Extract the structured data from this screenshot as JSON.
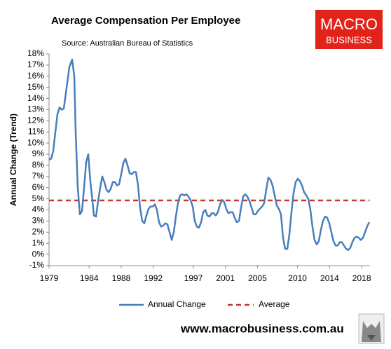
{
  "chart_data": {
    "type": "line",
    "title": "Average Compensation Per Employee",
    "subtitle": "Source: Australian Bureau of Statistics",
    "y_label": "Annual Change (Trend)",
    "logo": {
      "line1": "MACRO",
      "line2": "BUSINESS"
    },
    "footer": "www.macrobusiness.com.au",
    "x": [
      1979.0,
      1979.26,
      1979.52,
      1979.79,
      1980.05,
      1980.31,
      1980.57,
      1980.84,
      1981.1,
      1981.53,
      1981.88,
      1982.15,
      1982.32,
      1982.58,
      1982.85,
      1983.11,
      1983.37,
      1983.63,
      1983.89,
      1984.16,
      1984.42,
      1984.59,
      1984.86,
      1985.12,
      1985.38,
      1985.64,
      1985.9,
      1986.17,
      1986.43,
      1986.69,
      1986.95,
      1987.22,
      1987.48,
      1987.74,
      1988.0,
      1988.26,
      1988.53,
      1988.79,
      1989.05,
      1989.31,
      1989.58,
      1989.84,
      1990.1,
      1990.36,
      1990.62,
      1990.89,
      1991.15,
      1991.41,
      1991.67,
      1991.94,
      1992.2,
      1992.46,
      1992.72,
      1992.98,
      1993.25,
      1993.51,
      1993.77,
      1994.03,
      1994.3,
      1994.56,
      1994.82,
      1995.08,
      1995.34,
      1995.61,
      1995.87,
      1996.13,
      1996.39,
      1996.65,
      1996.92,
      1997.18,
      1997.44,
      1997.7,
      1997.97,
      1998.23,
      1998.49,
      1998.75,
      1999.01,
      1999.28,
      1999.54,
      1999.8,
      2000.06,
      2000.33,
      2000.59,
      2000.85,
      2001.11,
      2001.37,
      2001.64,
      2001.9,
      2002.16,
      2002.42,
      2002.69,
      2002.95,
      2003.21,
      2003.47,
      2003.73,
      2004.0,
      2004.26,
      2004.52,
      2004.78,
      2005.05,
      2005.31,
      2005.57,
      2005.83,
      2006.09,
      2006.36,
      2006.62,
      2006.88,
      2007.14,
      2007.41,
      2007.67,
      2007.93,
      2008.19,
      2008.45,
      2008.72,
      2008.98,
      2009.24,
      2009.5,
      2009.76,
      2010.03,
      2010.29,
      2010.55,
      2010.81,
      2011.08,
      2011.34,
      2011.6,
      2011.86,
      2012.12,
      2012.39,
      2012.65,
      2012.91,
      2013.17,
      2013.44,
      2013.7,
      2013.96,
      2014.22,
      2014.48,
      2014.75,
      2015.01,
      2015.27,
      2015.53,
      2015.79,
      2016.06,
      2016.32,
      2016.58,
      2016.84,
      2017.11,
      2017.37,
      2017.63,
      2017.89,
      2018.16,
      2018.42,
      2018.68,
      2018.94
    ],
    "series": [
      {
        "name": "Annual Change",
        "color": "#4a7ebb",
        "values": [
          8.5,
          8.6,
          9.3,
          11,
          12.6,
          13.2,
          13.0,
          13.1,
          14.5,
          16.8,
          17.5,
          16.0,
          11,
          6,
          3.6,
          3.9,
          6.0,
          8.3,
          9.0,
          6.5,
          4.8,
          3.5,
          3.4,
          4.8,
          6.0,
          7.0,
          6.5,
          5.8,
          5.6,
          5.9,
          6.5,
          6.5,
          6.2,
          6.3,
          7.2,
          8.2,
          8.6,
          8.0,
          7.3,
          7.2,
          7.4,
          7.4,
          6.2,
          4.2,
          3.0,
          2.8,
          3.5,
          4.1,
          4.3,
          4.3,
          4.5,
          4.0,
          2.9,
          2.5,
          2.6,
          2.8,
          2.7,
          2.0,
          1.3,
          2.0,
          3.4,
          4.6,
          5.3,
          5.4,
          5.3,
          5.4,
          5.2,
          4.9,
          4.3,
          3.0,
          2.5,
          2.4,
          2.9,
          3.8,
          4.0,
          3.5,
          3.4,
          3.7,
          3.7,
          3.5,
          3.8,
          4.5,
          4.9,
          4.7,
          4.1,
          3.7,
          3.8,
          3.8,
          3.3,
          2.9,
          3.0,
          4.2,
          5.2,
          5.4,
          5.2,
          4.8,
          4.2,
          3.6,
          3.6,
          3.9,
          4.1,
          4.3,
          4.6,
          5.8,
          6.9,
          6.7,
          6.2,
          5.3,
          4.4,
          4.1,
          3.6,
          1.5,
          0.5,
          0.5,
          1.8,
          3.8,
          5.5,
          6.5,
          6.8,
          6.6,
          6.2,
          5.6,
          5.3,
          5.0,
          4.0,
          2.5,
          1.3,
          0.9,
          1.2,
          2.2,
          3.0,
          3.4,
          3.3,
          2.8,
          2.0,
          1.2,
          0.8,
          0.8,
          1.1,
          1.1,
          0.8,
          0.5,
          0.4,
          0.6,
          1.1,
          1.5,
          1.6,
          1.5,
          1.3,
          1.5,
          2.0,
          2.5,
          2.9
        ]
      }
    ],
    "reference_line": {
      "name": "Average",
      "value": 4.85,
      "color": "#c0392b"
    },
    "xlim": [
      1979,
      2019
    ],
    "xticks": [
      1979,
      1984,
      1988,
      1992,
      1997,
      2001,
      2005,
      2010,
      2014,
      2018
    ],
    "ylim": [
      -1,
      18
    ],
    "yticks": [
      {
        "value": -1,
        "label": "-1%"
      },
      {
        "value": 0,
        "label": "0%"
      },
      {
        "value": 1,
        "label": "1%"
      },
      {
        "value": 2,
        "label": "2%"
      },
      {
        "value": 3,
        "label": "3%"
      },
      {
        "value": 4,
        "label": "4%"
      },
      {
        "value": 5,
        "label": "5%"
      },
      {
        "value": 6,
        "label": "6%"
      },
      {
        "value": 7,
        "label": "7%"
      },
      {
        "value": 8,
        "label": "8%"
      },
      {
        "value": 9,
        "label": "9%"
      },
      {
        "value": 10,
        "label": "10%"
      },
      {
        "value": 11,
        "label": "11%"
      },
      {
        "value": 12,
        "label": "12%"
      },
      {
        "value": 13,
        "label": "13%"
      },
      {
        "value": 14,
        "label": "14%"
      },
      {
        "value": 15,
        "label": "15%"
      },
      {
        "value": 16,
        "label": "16%"
      },
      {
        "value": 17,
        "label": "17%"
      },
      {
        "value": 18,
        "label": "18%"
      }
    ]
  }
}
